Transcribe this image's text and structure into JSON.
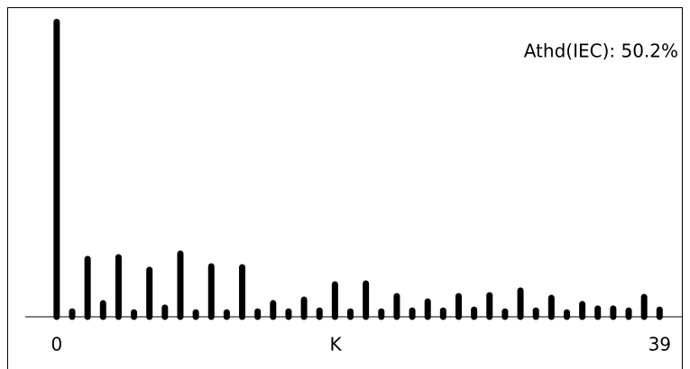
{
  "chart_data": {
    "type": "stem",
    "annotation": "Athd(IEC): 50.2%",
    "xlabel": "K",
    "x": [
      0,
      1,
      2,
      3,
      4,
      5,
      6,
      7,
      8,
      9,
      10,
      11,
      12,
      13,
      14,
      15,
      16,
      17,
      18,
      19,
      20,
      21,
      22,
      23,
      24,
      25,
      26,
      27,
      28,
      29,
      30,
      31,
      32,
      33,
      34,
      35,
      36,
      37,
      38,
      39
    ],
    "values": [
      100,
      1.8,
      19.6,
      4.6,
      20.2,
      1.5,
      15.9,
      3.1,
      21.4,
      1.5,
      17.1,
      1.5,
      16.8,
      1.8,
      4.6,
      1.8,
      5.8,
      2.1,
      11,
      1.8,
      11.3,
      1.8,
      7,
      2.1,
      5.2,
      2.1,
      7,
      2.4,
      7.3,
      1.8,
      8.9,
      2.1,
      6.4,
      1.5,
      4.3,
      2.8,
      2.8,
      2.1,
      6.7,
      2.4
    ],
    "color": "#000000",
    "xlim": [
      -3.2,
      40.5
    ],
    "xticks": [
      0,
      39
    ],
    "ylim": [
      0,
      105
    ]
  }
}
